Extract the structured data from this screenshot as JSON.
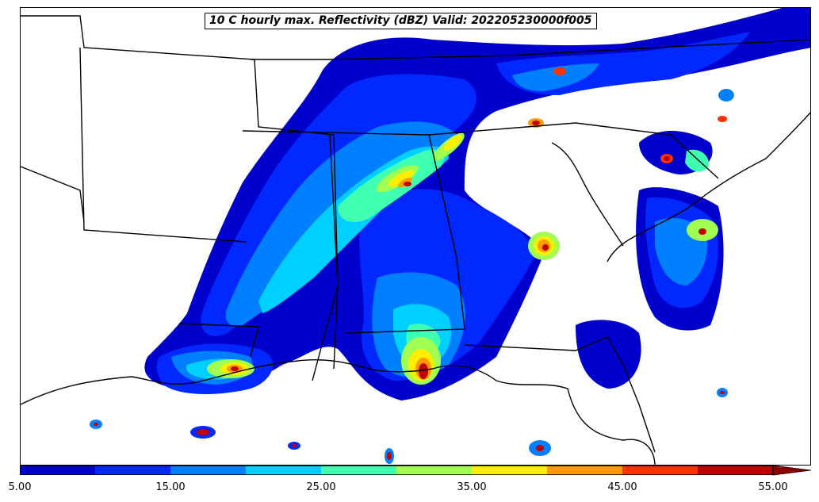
{
  "title": "10 C hourly max. Reflectivity (dBZ) Valid: 202205230000f005",
  "colorbar": {
    "min": 5,
    "max": 55,
    "extend": "max",
    "tick_labels": [
      "5.00",
      "15.00",
      "25.00",
      "35.00",
      "45.00",
      "55.00"
    ],
    "colors": [
      "#0000cd",
      "#0028ff",
      "#0080ff",
      "#00d0ff",
      "#40ffb0",
      "#a0ff50",
      "#ffee00",
      "#ff9900",
      "#ff3300",
      "#c00000"
    ],
    "extend_color": "#8b0000"
  },
  "chart_data": {
    "type": "heatmap",
    "title": "10 C hourly max. Reflectivity (dBZ) Valid: 202205230000f005",
    "variable": "Reflectivity (dBZ)",
    "value_range": [
      5,
      55
    ],
    "color_levels": [
      5,
      10,
      15,
      20,
      25,
      30,
      35,
      40,
      45,
      50,
      55
    ]
  }
}
